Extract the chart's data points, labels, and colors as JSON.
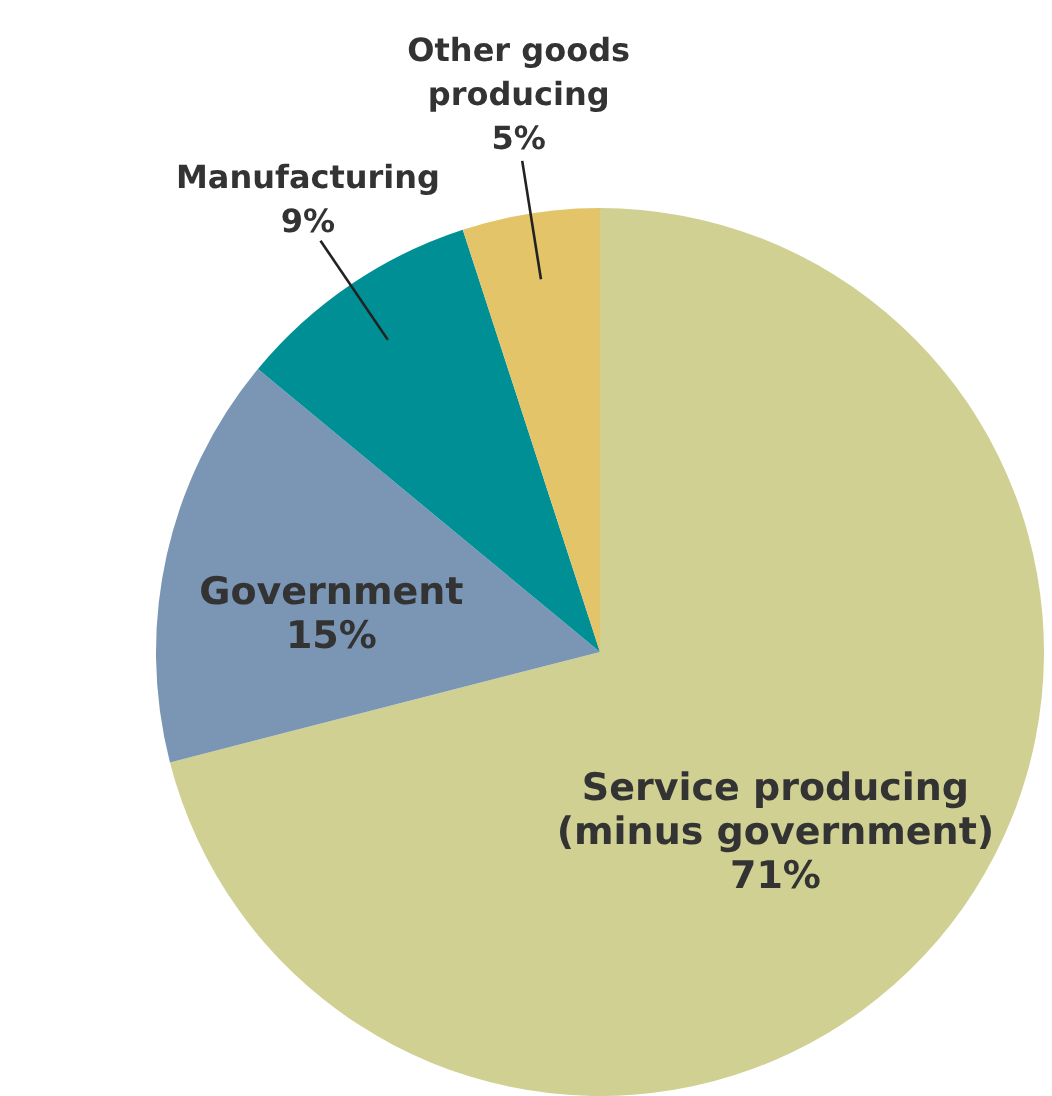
{
  "chart_data": {
    "type": "pie",
    "categories": [
      "Service producing (minus government)",
      "Government",
      "Manufacturing",
      "Other goods producing"
    ],
    "values": [
      71,
      15,
      9,
      5
    ],
    "value_labels": [
      "71%",
      "15%",
      "9%",
      "5%"
    ],
    "colors": [
      "#cfd092",
      "#7a96b4",
      "#008f95",
      "#e3c468"
    ]
  }
}
